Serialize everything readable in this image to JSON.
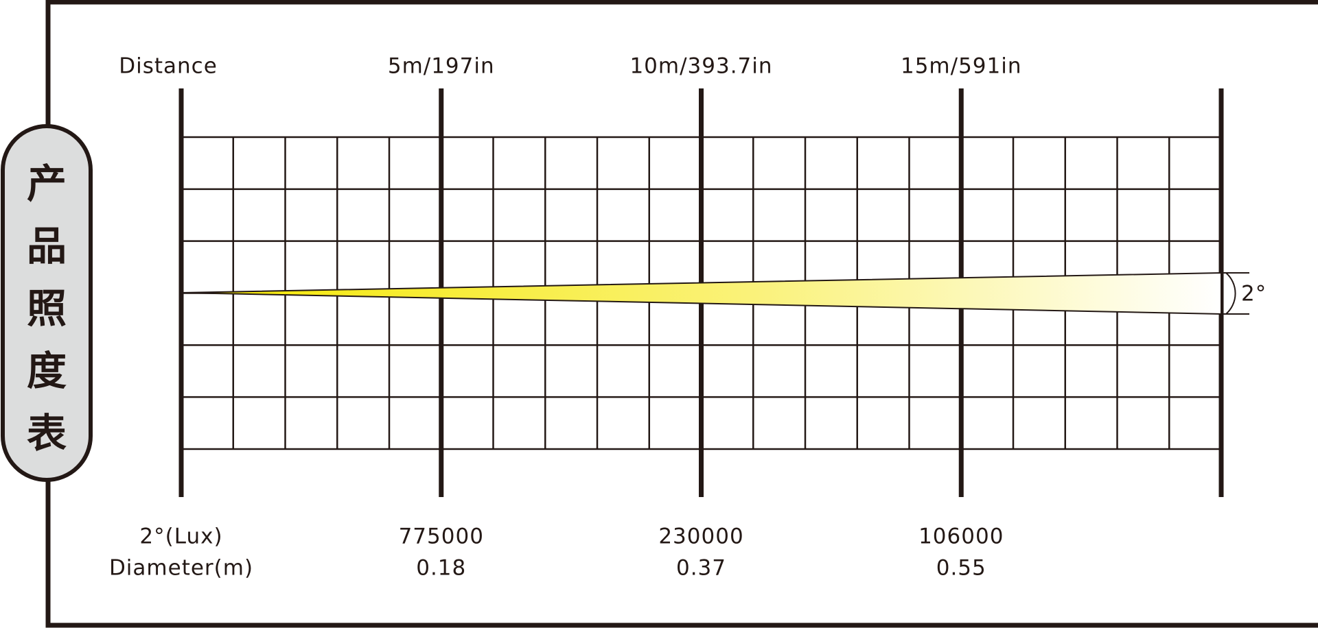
{
  "title": "产品照度表",
  "distance_label": "Distance",
  "distances": [
    "5m/197in",
    "10m/393.7in",
    "15m/591in"
  ],
  "lux_label": "2°(Lux)",
  "lux": [
    775000,
    230000,
    106000
  ],
  "diameter_label": "Diameter(m)",
  "diameters": [
    0.18,
    0.37,
    0.55
  ],
  "beam_angle": "2°"
}
